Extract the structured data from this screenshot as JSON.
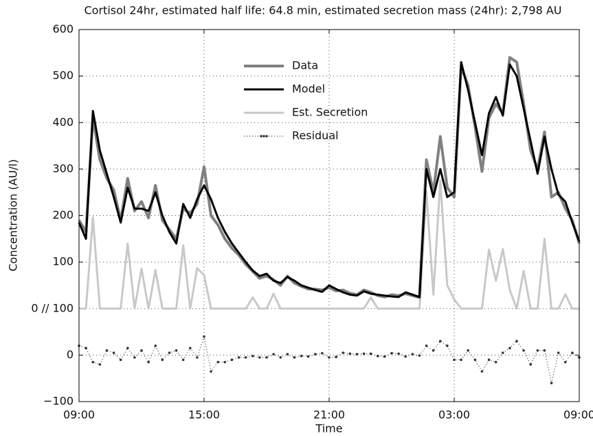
{
  "chart_data": {
    "type": "line",
    "title": "Cortisol 24hr, estimated half life: 64.8 min, estimated secretion mass (24hr): 2,798 AU",
    "xlabel": "Time",
    "ylabel": "Concentration (AU/l)",
    "x": [
      0,
      20,
      40,
      60,
      80,
      100,
      120,
      140,
      160,
      180,
      200,
      220,
      240,
      260,
      280,
      300,
      320,
      340,
      360,
      380,
      400,
      420,
      440,
      460,
      480,
      500,
      520,
      540,
      560,
      580,
      600,
      620,
      640,
      660,
      680,
      700,
      720,
      740,
      760,
      780,
      800,
      820,
      840,
      860,
      880,
      900,
      920,
      940,
      960,
      980,
      1000,
      1020,
      1040,
      1060,
      1080,
      1100,
      1120,
      1140,
      1160,
      1180,
      1200,
      1220,
      1240,
      1260,
      1280,
      1300,
      1320,
      1340,
      1360,
      1380,
      1400,
      1420,
      1440
    ],
    "xlim": [
      0,
      1440
    ],
    "xticks": [
      {
        "value": 0,
        "label": "09:00"
      },
      {
        "value": 360,
        "label": "15:00"
      },
      {
        "value": 720,
        "label": "21:00"
      },
      {
        "value": 1080,
        "label": "03:00"
      },
      {
        "value": 1440,
        "label": "09:00"
      }
    ],
    "ylim": [
      -200,
      600
    ],
    "yticks": [
      {
        "value": -200,
        "label": "−100"
      },
      {
        "value": -100,
        "label": "0"
      },
      {
        "value": 0,
        "label": "0 // 100"
      },
      100,
      200,
      300,
      400,
      500,
      600
    ],
    "grid": true,
    "legend_position": "top-center",
    "series": [
      {
        "name": "Data",
        "color": "#808080",
        "values": [
          190,
          165,
          410,
          320,
          280,
          255,
          190,
          280,
          210,
          230,
          195,
          265,
          190,
          170,
          150,
          215,
          205,
          225,
          305,
          200,
          180,
          150,
          130,
          115,
          95,
          80,
          65,
          70,
          62,
          50,
          70,
          55,
          48,
          42,
          42,
          40,
          45,
          38,
          40,
          33,
          30,
          40,
          35,
          28,
          25,
          30,
          28,
          32,
          28,
          24,
          320,
          250,
          370,
          260,
          240,
          520,
          480,
          390,
          295,
          410,
          440,
          420,
          540,
          530,
          440,
          340,
          300,
          380,
          240,
          250,
          215,
          190,
          140
        ]
      },
      {
        "name": "Model",
        "color": "#000000",
        "values": [
          185,
          150,
          425,
          340,
          290,
          240,
          185,
          260,
          215,
          215,
          210,
          250,
          200,
          165,
          140,
          225,
          195,
          235,
          265,
          235,
          195,
          165,
          140,
          120,
          100,
          82,
          70,
          75,
          60,
          55,
          68,
          60,
          50,
          45,
          40,
          36,
          50,
          42,
          35,
          30,
          28,
          37,
          32,
          30,
          28,
          26,
          25,
          35,
          30,
          25,
          300,
          240,
          300,
          240,
          250,
          530,
          470,
          400,
          330,
          420,
          455,
          415,
          525,
          500,
          430,
          360,
          290,
          370,
          300,
          245,
          230,
          185,
          145
        ]
      },
      {
        "name": "Est. Secretion",
        "color": "#c8c8c8",
        "values": [
          0,
          0,
          196,
          0,
          0,
          0,
          0,
          140,
          0,
          86,
          0,
          83,
          0,
          0,
          0,
          136,
          0,
          87,
          72,
          0,
          0,
          0,
          0,
          0,
          0,
          24,
          0,
          0,
          32,
          0,
          0,
          0,
          0,
          0,
          0,
          0,
          0,
          0,
          0,
          0,
          0,
          0,
          24,
          0,
          0,
          0,
          0,
          0,
          0,
          0,
          252,
          30,
          276,
          50,
          20,
          0,
          0,
          0,
          0,
          127,
          60,
          128,
          40,
          0,
          81,
          0,
          0,
          150,
          0,
          0,
          31,
          0,
          0
        ]
      },
      {
        "name": "Residual",
        "color": "#333333",
        "line_style": "dotted",
        "values": [
          -80,
          -85,
          -115,
          -120,
          -90,
          -95,
          -110,
          -85,
          -105,
          -90,
          -115,
          -80,
          -110,
          -95,
          -90,
          -110,
          -85,
          -105,
          -60,
          -135,
          -115,
          -115,
          -110,
          -105,
          -105,
          -102,
          -105,
          -105,
          -98,
          -105,
          -98,
          -105,
          -102,
          -103,
          -98,
          -96,
          -105,
          -104,
          -95,
          -97,
          -98,
          -97,
          -97,
          -102,
          -103,
          -96,
          -97,
          -103,
          -98,
          -101,
          -80,
          -90,
          -70,
          -80,
          -110,
          -110,
          -90,
          -110,
          -135,
          -110,
          -115,
          -95,
          -85,
          -70,
          -90,
          -120,
          -90,
          -90,
          -160,
          -95,
          -115,
          -95,
          -105
        ]
      }
    ]
  }
}
